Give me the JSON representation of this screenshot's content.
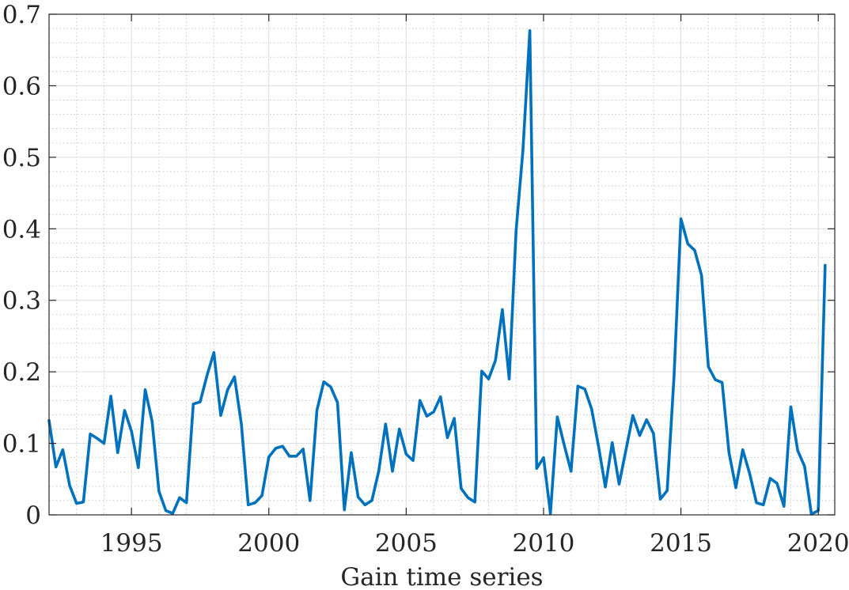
{
  "chart_data": {
    "type": "line",
    "title": "",
    "xlabel": "Gain time series",
    "ylabel": "",
    "xlim": [
      1992,
      2020.6
    ],
    "ylim": [
      0,
      0.7
    ],
    "x_ticks": [
      1995,
      2000,
      2005,
      2010,
      2015,
      2020
    ],
    "x_tick_labels": [
      "1995",
      "2000",
      "2005",
      "2010",
      "2015",
      "2020"
    ],
    "y_ticks": [
      0,
      0.1,
      0.2,
      0.3,
      0.4,
      0.5,
      0.6,
      0.7
    ],
    "y_tick_labels": [
      "0",
      "0.1",
      "0.2",
      "0.3",
      "0.4",
      "0.5",
      "0.6",
      "0.7"
    ],
    "grid": true,
    "minor_grid": true,
    "line_color": "#0072BD",
    "series": [
      {
        "x": [
          1992.0,
          1992.25,
          1992.5,
          1992.75,
          1993.0,
          1993.25,
          1993.5,
          1993.75,
          1994.0,
          1994.25,
          1994.5,
          1994.75,
          1995.0,
          1995.25,
          1995.5,
          1995.75,
          1996.0,
          1996.25,
          1996.5,
          1996.75,
          1997.0,
          1997.25,
          1997.5,
          1997.75,
          1998.0,
          1998.25,
          1998.5,
          1998.75,
          1999.0,
          1999.25,
          1999.5,
          1999.75,
          2000.0,
          2000.25,
          2000.5,
          2000.75,
          2001.0,
          2001.25,
          2001.5,
          2001.75,
          2002.0,
          2002.25,
          2002.5,
          2002.75,
          2003.0,
          2003.25,
          2003.5,
          2003.75,
          2004.0,
          2004.25,
          2004.5,
          2004.75,
          2005.0,
          2005.25,
          2005.5,
          2005.75,
          2006.0,
          2006.25,
          2006.5,
          2006.75,
          2007.0,
          2007.25,
          2007.5,
          2007.75,
          2008.0,
          2008.25,
          2008.5,
          2008.75,
          2009.0,
          2009.25,
          2009.5,
          2009.75,
          2010.0,
          2010.25,
          2010.5,
          2010.75,
          2011.0,
          2011.25,
          2011.5,
          2011.75,
          2012.0,
          2012.25,
          2012.5,
          2012.75,
          2013.0,
          2013.25,
          2013.5,
          2013.75,
          2014.0,
          2014.25,
          2014.5,
          2014.75,
          2015.0,
          2015.25,
          2015.5,
          2015.75,
          2016.0,
          2016.25,
          2016.5,
          2016.75,
          2017.0,
          2017.25,
          2017.5,
          2017.75,
          2018.0,
          2018.25,
          2018.5,
          2018.75,
          2019.0,
          2019.25,
          2019.5,
          2019.75,
          2020.0,
          2020.25
        ],
        "values": [
          0.132,
          0.067,
          0.091,
          0.041,
          0.016,
          0.018,
          0.113,
          0.107,
          0.1,
          0.166,
          0.087,
          0.146,
          0.117,
          0.066,
          0.175,
          0.131,
          0.033,
          0.006,
          0.002,
          0.024,
          0.017,
          0.155,
          0.158,
          0.195,
          0.227,
          0.139,
          0.175,
          0.193,
          0.127,
          0.014,
          0.017,
          0.027,
          0.081,
          0.093,
          0.096,
          0.082,
          0.082,
          0.092,
          0.02,
          0.146,
          0.186,
          0.179,
          0.157,
          0.007,
          0.087,
          0.025,
          0.014,
          0.02,
          0.061,
          0.127,
          0.061,
          0.12,
          0.085,
          0.076,
          0.16,
          0.138,
          0.144,
          0.165,
          0.108,
          0.135,
          0.037,
          0.024,
          0.018,
          0.201,
          0.19,
          0.216,
          0.287,
          0.19,
          0.397,
          0.51,
          0.677,
          0.065,
          0.08,
          0.002,
          0.137,
          0.098,
          0.061,
          0.18,
          0.176,
          0.148,
          0.096,
          0.039,
          0.101,
          0.043,
          0.091,
          0.139,
          0.111,
          0.133,
          0.114,
          0.022,
          0.034,
          0.194,
          0.414,
          0.379,
          0.37,
          0.335,
          0.207,
          0.189,
          0.185,
          0.087,
          0.038,
          0.091,
          0.058,
          0.017,
          0.014,
          0.051,
          0.044,
          0.012,
          0.151,
          0.09,
          0.068,
          0.001,
          0.006,
          0.349
        ]
      }
    ]
  }
}
